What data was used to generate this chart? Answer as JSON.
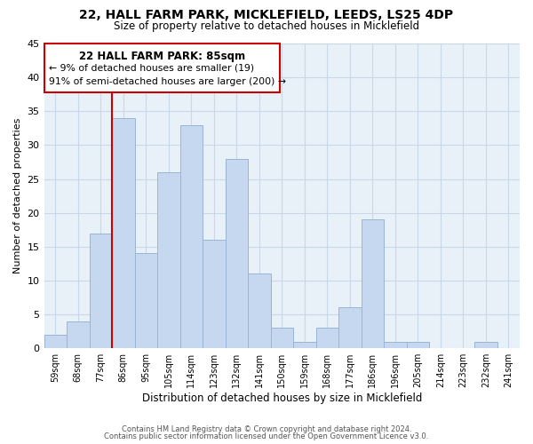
{
  "title1": "22, HALL FARM PARK, MICKLEFIELD, LEEDS, LS25 4DP",
  "title2": "Size of property relative to detached houses in Micklefield",
  "xlabel": "Distribution of detached houses by size in Micklefield",
  "ylabel": "Number of detached properties",
  "bins": [
    "59sqm",
    "68sqm",
    "77sqm",
    "86sqm",
    "95sqm",
    "105sqm",
    "114sqm",
    "123sqm",
    "132sqm",
    "141sqm",
    "150sqm",
    "159sqm",
    "168sqm",
    "177sqm",
    "186sqm",
    "196sqm",
    "205sqm",
    "214sqm",
    "223sqm",
    "232sqm",
    "241sqm"
  ],
  "values": [
    2,
    4,
    17,
    34,
    14,
    26,
    33,
    16,
    28,
    11,
    3,
    1,
    3,
    6,
    19,
    1,
    1,
    0,
    0,
    1,
    0
  ],
  "bar_color": "#c5d8f0",
  "bar_edge_color": "#9ab5d5",
  "vline_color": "#cc0000",
  "ylim": [
    0,
    45
  ],
  "yticks": [
    0,
    5,
    10,
    15,
    20,
    25,
    30,
    35,
    40,
    45
  ],
  "annotation_title": "22 HALL FARM PARK: 85sqm",
  "annotation_line1": "← 9% of detached houses are smaller (19)",
  "annotation_line2": "91% of semi-detached houses are larger (200) →",
  "box_facecolor": "#ffffff",
  "box_edgecolor": "#cc0000",
  "footer1": "Contains HM Land Registry data © Crown copyright and database right 2024.",
  "footer2": "Contains public sector information licensed under the Open Government Licence v3.0.",
  "background_color": "#ffffff",
  "plot_bg_color": "#e8f0f8",
  "grid_color": "#c8d8e8"
}
